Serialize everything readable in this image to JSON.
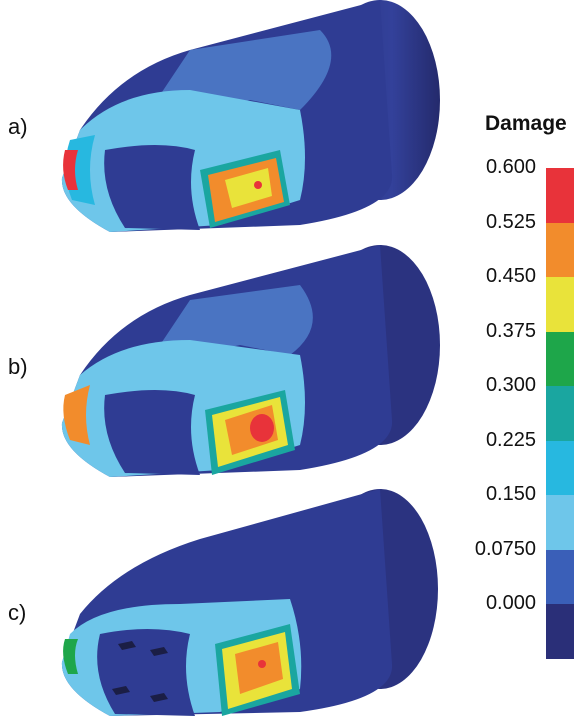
{
  "panels": [
    {
      "label": "a)"
    },
    {
      "label": "b)"
    },
    {
      "label": "c)"
    }
  ],
  "legend": {
    "title": "Damage",
    "ticks": [
      "0.600",
      "0.525",
      "0.450",
      "0.375",
      "0.300",
      "0.225",
      "0.150",
      "0.0750",
      "0.000"
    ],
    "colors": [
      "#e8333a",
      "#f28c2c",
      "#e9e33a",
      "#1ea64a",
      "#1aa6a0",
      "#27b8e0",
      "#6ec6ea",
      "#3a5fb8",
      "#2a2f78"
    ]
  }
}
